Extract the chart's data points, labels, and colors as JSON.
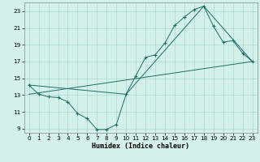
{
  "title": "",
  "xlabel": "Humidex (Indice chaleur)",
  "bg_color": "#d4f0eb",
  "line_color": "#1a6e64",
  "xlim": [
    -0.5,
    23.5
  ],
  "ylim": [
    8.5,
    24.0
  ],
  "yticks": [
    9,
    11,
    13,
    15,
    17,
    19,
    21,
    23
  ],
  "xticks": [
    0,
    1,
    2,
    3,
    4,
    5,
    6,
    7,
    8,
    9,
    10,
    11,
    12,
    13,
    14,
    15,
    16,
    17,
    18,
    19,
    20,
    21,
    22,
    23
  ],
  "grid_color": "#a8d8cc",
  "line1_x": [
    0,
    1,
    2,
    3,
    4,
    5,
    6,
    7,
    8,
    9,
    10,
    11,
    12,
    13,
    14,
    15,
    16,
    17,
    18,
    19,
    20,
    21,
    22,
    23
  ],
  "line1_y": [
    14.2,
    13.1,
    12.8,
    12.7,
    12.2,
    10.8,
    10.2,
    8.9,
    8.9,
    9.5,
    13.1,
    15.3,
    17.5,
    17.8,
    19.2,
    21.3,
    22.3,
    23.2,
    23.6,
    21.2,
    19.3,
    19.5,
    18.0,
    17.0
  ],
  "line2_x": [
    0,
    10,
    18,
    23
  ],
  "line2_y": [
    14.2,
    13.1,
    23.6,
    17.0
  ],
  "line3_x": [
    0,
    23
  ],
  "line3_y": [
    13.1,
    17.0
  ],
  "xlabel_fontsize": 6.0,
  "tick_fontsize": 5.2
}
